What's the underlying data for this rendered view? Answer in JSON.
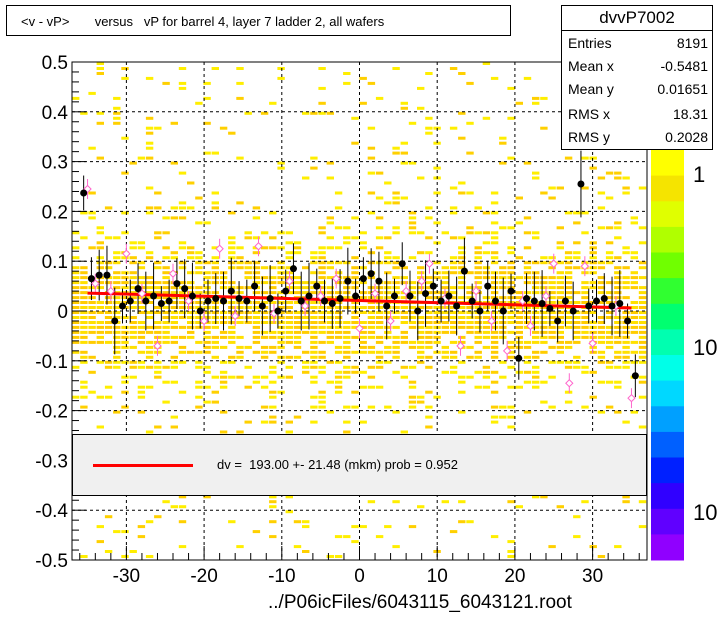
{
  "title": "<v - vP>       versus   vP for barrel 4, layer 7 ladder 2, all wafers",
  "stats": {
    "name": "dvvP7002",
    "rows": [
      {
        "label": "Entries",
        "value": "8191"
      },
      {
        "label": "Mean x",
        "value": "-0.5481"
      },
      {
        "label": "Mean y",
        "value": "0.01651"
      },
      {
        "label": "RMS x",
        "value": "18.31"
      },
      {
        "label": "RMS y",
        "value": "0.2028"
      }
    ]
  },
  "legend": {
    "text": "dv =  193.00 +- 21.48 (mkm) prob = 0.952",
    "color": "#ff0000"
  },
  "footer": "../P06icFiles/6043115_6043121.root",
  "colors": {
    "fit": "#ff0000",
    "profile": "#000000",
    "open_marker": "#ff66cc",
    "heat": "#ffdd00"
  },
  "chart_data": {
    "type": "scatter",
    "xlim": [
      -37,
      37
    ],
    "ylim": [
      -0.5,
      0.5
    ],
    "xticks": [
      -30,
      -20,
      -10,
      0,
      10,
      20,
      30
    ],
    "yticks": [
      -0.5,
      -0.4,
      -0.3,
      -0.2,
      -0.1,
      0,
      0.1,
      0.2,
      0.3,
      0.4,
      0.5
    ],
    "grid": true,
    "fit": {
      "x": [
        -35,
        35
      ],
      "y": [
        0.036,
        0.006
      ]
    },
    "profile_filled": [
      {
        "x": -35.5,
        "y": 0.237
      },
      {
        "x": -34.5,
        "y": 0.065
      },
      {
        "x": -33.5,
        "y": 0.072
      },
      {
        "x": -32.5,
        "y": 0.072
      },
      {
        "x": -31.5,
        "y": -0.02
      },
      {
        "x": -30.5,
        "y": 0.01
      },
      {
        "x": -29.5,
        "y": 0.02
      },
      {
        "x": -28.5,
        "y": 0.045
      },
      {
        "x": -27.5,
        "y": 0.02
      },
      {
        "x": -26.5,
        "y": 0.03
      },
      {
        "x": -25.5,
        "y": 0.015
      },
      {
        "x": -24.5,
        "y": 0.02
      },
      {
        "x": -23.5,
        "y": 0.055
      },
      {
        "x": -22.5,
        "y": 0.045
      },
      {
        "x": -21.5,
        "y": 0.03
      },
      {
        "x": -20.5,
        "y": 0.0
      },
      {
        "x": -19.5,
        "y": 0.02
      },
      {
        "x": -18.5,
        "y": 0.025
      },
      {
        "x": -17.5,
        "y": 0.02
      },
      {
        "x": -16.5,
        "y": 0.04
      },
      {
        "x": -15.5,
        "y": 0.025
      },
      {
        "x": -14.5,
        "y": 0.02
      },
      {
        "x": -13.5,
        "y": 0.05
      },
      {
        "x": -12.5,
        "y": 0.01
      },
      {
        "x": -11.5,
        "y": 0.025
      },
      {
        "x": -10.5,
        "y": 0.0
      },
      {
        "x": -9.5,
        "y": 0.04
      },
      {
        "x": -8.5,
        "y": 0.085
      },
      {
        "x": -7.5,
        "y": 0.02
      },
      {
        "x": -6.5,
        "y": 0.03
      },
      {
        "x": -5.5,
        "y": 0.05
      },
      {
        "x": -4.5,
        "y": 0.02
      },
      {
        "x": -3.5,
        "y": 0.015
      },
      {
        "x": -2.5,
        "y": 0.025
      },
      {
        "x": -1.5,
        "y": 0.06
      },
      {
        "x": -0.5,
        "y": 0.03
      },
      {
        "x": 0.5,
        "y": 0.065
      },
      {
        "x": 1.5,
        "y": 0.075
      },
      {
        "x": 2.5,
        "y": 0.06
      },
      {
        "x": 3.5,
        "y": 0.01
      },
      {
        "x": 4.5,
        "y": 0.03
      },
      {
        "x": 5.5,
        "y": 0.095
      },
      {
        "x": 6.5,
        "y": 0.03
      },
      {
        "x": 7.5,
        "y": 0.0
      },
      {
        "x": 8.5,
        "y": 0.035
      },
      {
        "x": 9.5,
        "y": 0.05
      },
      {
        "x": 10.5,
        "y": 0.02
      },
      {
        "x": 11.5,
        "y": 0.03
      },
      {
        "x": 12.5,
        "y": 0.01
      },
      {
        "x": 13.5,
        "y": 0.08
      },
      {
        "x": 14.5,
        "y": 0.02
      },
      {
        "x": 15.5,
        "y": 0.0
      },
      {
        "x": 16.5,
        "y": 0.05
      },
      {
        "x": 17.5,
        "y": 0.02
      },
      {
        "x": 18.5,
        "y": 0.0
      },
      {
        "x": 19.5,
        "y": 0.04
      },
      {
        "x": 20.5,
        "y": -0.095
      },
      {
        "x": 21.5,
        "y": 0.025
      },
      {
        "x": 22.5,
        "y": 0.02
      },
      {
        "x": 23.5,
        "y": 0.015
      },
      {
        "x": 24.5,
        "y": 0.005
      },
      {
        "x": 25.5,
        "y": -0.02
      },
      {
        "x": 26.5,
        "y": 0.02
      },
      {
        "x": 27.5,
        "y": 0.0
      },
      {
        "x": 28.5,
        "y": 0.255
      },
      {
        "x": 29.5,
        "y": 0.01
      },
      {
        "x": 30.5,
        "y": 0.02
      },
      {
        "x": 31.5,
        "y": 0.025
      },
      {
        "x": 32.5,
        "y": 0.01
      },
      {
        "x": 33.5,
        "y": 0.015
      },
      {
        "x": 34.5,
        "y": -0.02
      },
      {
        "x": 35.5,
        "y": -0.13
      }
    ],
    "profile_open": [
      {
        "x": -35,
        "y": 0.245
      },
      {
        "x": -34,
        "y": 0.055
      },
      {
        "x": -32,
        "y": 0.04
      },
      {
        "x": -30,
        "y": 0.115
      },
      {
        "x": -28,
        "y": 0.035
      },
      {
        "x": -26,
        "y": -0.07
      },
      {
        "x": -24,
        "y": 0.075
      },
      {
        "x": -22,
        "y": 0.02
      },
      {
        "x": -20,
        "y": -0.02
      },
      {
        "x": -18,
        "y": 0.125
      },
      {
        "x": -16,
        "y": -0.01
      },
      {
        "x": -13,
        "y": 0.13
      },
      {
        "x": -11,
        "y": -0.005
      },
      {
        "x": -9,
        "y": 0.06
      },
      {
        "x": -7,
        "y": 0.01
      },
      {
        "x": -5,
        "y": 0.03
      },
      {
        "x": -3,
        "y": 0.065
      },
      {
        "x": 0,
        "y": -0.035
      },
      {
        "x": 2,
        "y": 0.035
      },
      {
        "x": 4,
        "y": -0.02
      },
      {
        "x": 6,
        "y": 0.04
      },
      {
        "x": 8,
        "y": 0.06
      },
      {
        "x": 9,
        "y": 0.095
      },
      {
        "x": 11,
        "y": 0.025
      },
      {
        "x": 13,
        "y": -0.07
      },
      {
        "x": 15,
        "y": 0.04
      },
      {
        "x": 17,
        "y": -0.02
      },
      {
        "x": 19,
        "y": -0.08
      },
      {
        "x": 21,
        "y": 0.02
      },
      {
        "x": 22,
        "y": -0.03
      },
      {
        "x": 24,
        "y": 0.03
      },
      {
        "x": 25,
        "y": 0.095
      },
      {
        "x": 27,
        "y": -0.145
      },
      {
        "x": 29,
        "y": 0.09
      },
      {
        "x": 30,
        "y": -0.065
      },
      {
        "x": 33,
        "y": 0.01
      },
      {
        "x": 35,
        "y": -0.175
      }
    ]
  },
  "palette": {
    "labels": [
      "1",
      "10",
      "10"
    ]
  }
}
